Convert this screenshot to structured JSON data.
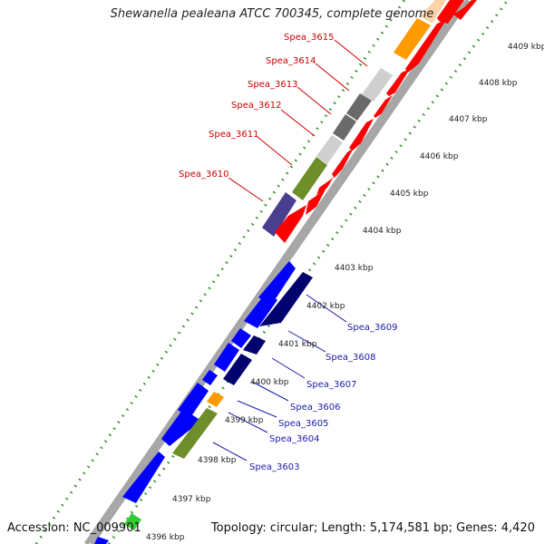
{
  "title": "Shewanella pealeana ATCC 700345, complete genome",
  "accession": "Accession: NC_009901",
  "summary": "Topology: circular; Length: 5,174,581 bp; Genes: 4,420",
  "ticks": [
    {
      "label": "4396 kbp"
    },
    {
      "label": "4397 kbp"
    },
    {
      "label": "4398 kbp"
    },
    {
      "label": "4399 kbp"
    },
    {
      "label": "4400 kbp"
    },
    {
      "label": "4401 kbp"
    },
    {
      "label": "4402 kbp"
    },
    {
      "label": "4403 kbp"
    },
    {
      "label": "4404 kbp"
    },
    {
      "label": "4405 kbp"
    },
    {
      "label": "4406 kbp"
    },
    {
      "label": "4407 kbp"
    },
    {
      "label": "4408 kbp"
    },
    {
      "label": "4409 kbp"
    }
  ],
  "gene_labels_upper": [
    {
      "label": "Spea_3615"
    },
    {
      "label": "Spea_3614"
    },
    {
      "label": "Spea_3613"
    },
    {
      "label": "Spea_3612"
    },
    {
      "label": "Spea_3611"
    },
    {
      "label": "Spea_3610"
    }
  ],
  "gene_labels_lower": [
    {
      "label": "Spea_3609"
    },
    {
      "label": "Spea_3608"
    },
    {
      "label": "Spea_3607"
    },
    {
      "label": "Spea_3606"
    },
    {
      "label": "Spea_3605"
    },
    {
      "label": "Spea_3604"
    },
    {
      "label": "Spea_3603"
    }
  ],
  "colors": {
    "backbone": "#a6a6a6",
    "tick": "#2a8a1e",
    "upper_label": "#cc0000",
    "lower_label": "#1a1aa8",
    "red": "#ff0000",
    "orange": "#ff9a00",
    "light_gray": "#cfcfcf",
    "dark_gray": "#6a6a6a",
    "olive": "#6e8e2a",
    "purple": "#4a3f8f",
    "blue": "#0000ff",
    "navy": "#00006e",
    "green": "#33cc33",
    "peach": "#ffd3a8"
  }
}
